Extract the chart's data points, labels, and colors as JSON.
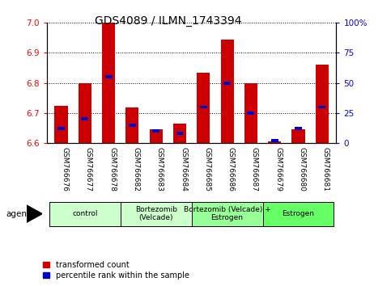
{
  "title": "GDS4089 / ILMN_1743394",
  "samples": [
    "GSM766676",
    "GSM766677",
    "GSM766678",
    "GSM766682",
    "GSM766683",
    "GSM766684",
    "GSM766685",
    "GSM766686",
    "GSM766687",
    "GSM766679",
    "GSM766680",
    "GSM766681"
  ],
  "transformed_count": [
    6.725,
    6.8,
    7.0,
    6.718,
    6.645,
    6.665,
    6.835,
    6.945,
    6.8,
    6.605,
    6.645,
    6.86
  ],
  "percentile_rank": [
    12,
    20,
    55,
    15,
    10,
    8,
    30,
    50,
    25,
    2,
    12,
    30
  ],
  "ylim_left": [
    6.6,
    7.0
  ],
  "ylim_right": [
    0,
    100
  ],
  "yticks_left": [
    6.6,
    6.7,
    6.8,
    6.9,
    7.0
  ],
  "yticks_right": [
    0,
    25,
    50,
    75,
    100
  ],
  "groups": [
    {
      "label": "control",
      "start": 0,
      "end": 3,
      "color": "#ccffcc"
    },
    {
      "label": "Bortezomib\n(Velcade)",
      "start": 3,
      "end": 6,
      "color": "#ccffcc"
    },
    {
      "label": "Bortezomib (Velcade) +\nEstrogen",
      "start": 6,
      "end": 9,
      "color": "#99ff99"
    },
    {
      "label": "Estrogen",
      "start": 9,
      "end": 12,
      "color": "#66ff66"
    }
  ],
  "bar_color": "#cc0000",
  "blue_color": "#0000cc",
  "baseline": 6.6,
  "legend_red": "transformed count",
  "legend_blue": "percentile rank within the sample",
  "agent_label": "agent",
  "grid_style": "dotted",
  "title_fontsize": 10,
  "tick_fontsize": 7.5,
  "label_fontsize": 7.5
}
